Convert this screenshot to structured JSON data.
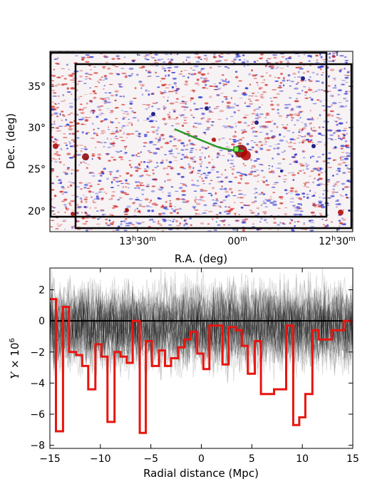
{
  "chart_data": [
    {
      "type": "heatmap",
      "title": "",
      "xlabel": "R.A. (deg)",
      "ylabel": "Dec. (deg)",
      "x_ticks": [
        {
          "h": "13",
          "m": "30"
        },
        {
          "h": "",
          "m": "00"
        },
        {
          "h": "12",
          "m": "30"
        }
      ],
      "y_ticks": [
        "35°",
        "30°",
        "25°",
        "20°"
      ],
      "colors": {
        "positive": "#d0201c",
        "negative": "#1a22cc",
        "background": "#ffffff",
        "track": "#2a9a2a",
        "marker": "#7cfc5a",
        "rect": "#000000"
      },
      "grid": false
    },
    {
      "type": "line",
      "title": "",
      "xlabel": "Radial distance (Mpc)",
      "ylabel_tex": {
        "Y": "Y",
        "times": " × 10",
        "exp": "6"
      },
      "xlim": [
        -15,
        15
      ],
      "ylim": [
        -8.2,
        3.4
      ],
      "x_ticks": [
        "−15",
        "−10",
        "−5",
        "0",
        "5",
        "10",
        "15"
      ],
      "y_ticks": [
        "2",
        "0",
        "−2",
        "−4",
        "−6",
        "−8"
      ],
      "grid": false,
      "colors": {
        "profile": "#e8150f",
        "realizations": "#000000",
        "zero": "#000000"
      },
      "profile_steps": [
        {
          "x0": -15.0,
          "x1": -14.4,
          "y": 1.4
        },
        {
          "x0": -14.4,
          "x1": -13.7,
          "y": -7.1
        },
        {
          "x0": -13.7,
          "x1": -13.1,
          "y": 0.9
        },
        {
          "x0": -13.1,
          "x1": -12.4,
          "y": -2.0
        },
        {
          "x0": -12.4,
          "x1": -11.8,
          "y": -2.2
        },
        {
          "x0": -11.8,
          "x1": -11.2,
          "y": -2.9
        },
        {
          "x0": -11.2,
          "x1": -10.5,
          "y": -4.4
        },
        {
          "x0": -10.5,
          "x1": -9.9,
          "y": -1.5
        },
        {
          "x0": -9.9,
          "x1": -9.3,
          "y": -2.3
        },
        {
          "x0": -9.3,
          "x1": -8.6,
          "y": -6.5
        },
        {
          "x0": -8.6,
          "x1": -8.0,
          "y": -2.0
        },
        {
          "x0": -8.0,
          "x1": -7.4,
          "y": -2.3
        },
        {
          "x0": -7.4,
          "x1": -6.8,
          "y": -2.7
        },
        {
          "x0": -6.8,
          "x1": -6.1,
          "y": 0.0
        },
        {
          "x0": -6.1,
          "x1": -5.5,
          "y": -7.2
        },
        {
          "x0": -5.5,
          "x1": -4.9,
          "y": -1.3
        },
        {
          "x0": -4.9,
          "x1": -4.2,
          "y": -2.9
        },
        {
          "x0": -4.2,
          "x1": -3.6,
          "y": -1.9
        },
        {
          "x0": -3.6,
          "x1": -3.0,
          "y": -2.9
        },
        {
          "x0": -3.0,
          "x1": -2.3,
          "y": -2.4
        },
        {
          "x0": -2.3,
          "x1": -1.7,
          "y": -1.7
        },
        {
          "x0": -1.7,
          "x1": -1.1,
          "y": -1.2
        },
        {
          "x0": -1.1,
          "x1": -0.4,
          "y": -0.7
        },
        {
          "x0": -0.4,
          "x1": 0.2,
          "y": -2.1
        },
        {
          "x0": 0.2,
          "x1": 0.8,
          "y": -3.1
        },
        {
          "x0": 0.8,
          "x1": 1.5,
          "y": -0.3
        },
        {
          "x0": 1.5,
          "x1": 2.1,
          "y": -0.3
        },
        {
          "x0": 2.1,
          "x1": 2.7,
          "y": -2.8
        },
        {
          "x0": 2.7,
          "x1": 3.4,
          "y": -0.4
        },
        {
          "x0": 3.4,
          "x1": 4.0,
          "y": -0.6
        },
        {
          "x0": 4.0,
          "x1": 4.6,
          "y": -1.6
        },
        {
          "x0": 4.6,
          "x1": 5.3,
          "y": -3.4
        },
        {
          "x0": 5.3,
          "x1": 5.9,
          "y": -1.3
        },
        {
          "x0": 5.9,
          "x1": 6.5,
          "y": -4.7
        },
        {
          "x0": 6.5,
          "x1": 7.2,
          "y": -4.7
        },
        {
          "x0": 7.2,
          "x1": 7.8,
          "y": -4.4
        },
        {
          "x0": 7.8,
          "x1": 8.4,
          "y": -4.4
        },
        {
          "x0": 8.4,
          "x1": 9.1,
          "y": -0.3
        },
        {
          "x0": 9.1,
          "x1": 9.7,
          "y": -6.7
        },
        {
          "x0": 9.7,
          "x1": 10.3,
          "y": -6.2
        },
        {
          "x0": 10.3,
          "x1": 11.0,
          "y": -4.7
        },
        {
          "x0": 11.0,
          "x1": 11.6,
          "y": -0.6
        },
        {
          "x0": 11.6,
          "x1": 12.2,
          "y": -1.2
        },
        {
          "x0": 12.2,
          "x1": 12.9,
          "y": -1.2
        },
        {
          "x0": 12.9,
          "x1": 13.5,
          "y": -0.6
        },
        {
          "x0": 13.5,
          "x1": 14.1,
          "y": -0.6
        },
        {
          "x0": 14.1,
          "x1": 15.0,
          "y": 0.0
        }
      ]
    }
  ]
}
